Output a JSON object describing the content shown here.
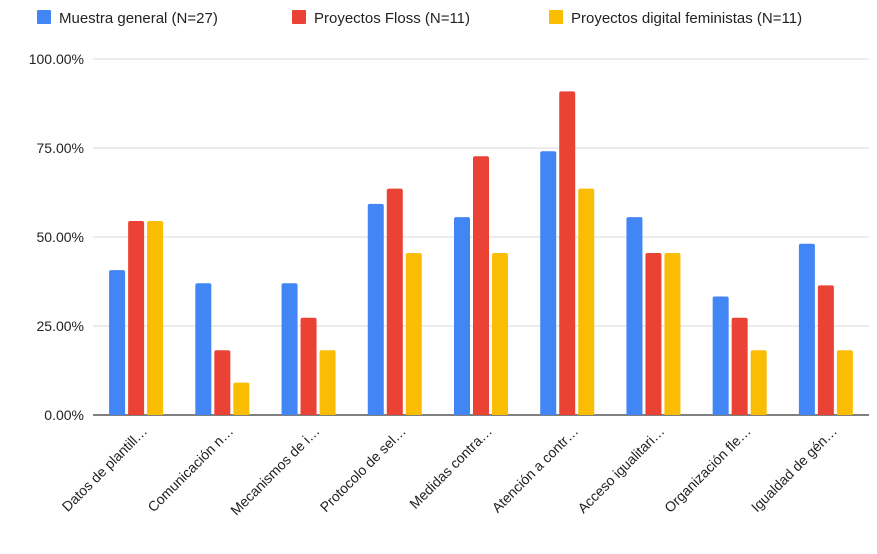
{
  "chart_data": {
    "type": "bar",
    "title": "",
    "xlabel": "",
    "ylabel": "",
    "ylim": [
      0,
      1
    ],
    "yticks": [
      {
        "value": 0,
        "label": "0.00%"
      },
      {
        "value": 0.25,
        "label": "25.00%"
      },
      {
        "value": 0.5,
        "label": "50.00%"
      },
      {
        "value": 0.75,
        "label": "75.00%"
      },
      {
        "value": 1,
        "label": "100.00%"
      }
    ],
    "grid": true,
    "legend_position": "top",
    "categories": [
      "Datos de plantill…",
      "Comunicación n…",
      "Mecanismos de i…",
      "Protocolo de sel…",
      "Medidas contra…",
      "Atención a contr…",
      "Acceso igualitari…",
      "Organización fle…",
      "Igualdad de gén…"
    ],
    "series": [
      {
        "name": "Muestra general (N=27)",
        "color": "#4285f4",
        "values": [
          0.407,
          0.37,
          0.37,
          0.593,
          0.556,
          0.741,
          0.556,
          0.333,
          0.481
        ]
      },
      {
        "name": "Proyectos Floss (N=11)",
        "color": "#ea4335",
        "values": [
          0.545,
          0.182,
          0.273,
          0.636,
          0.727,
          0.909,
          0.455,
          0.273,
          0.364
        ]
      },
      {
        "name": "Proyectos digital feministas (N=11)",
        "color": "#fbbc04",
        "values": [
          0.545,
          0.091,
          0.182,
          0.455,
          0.455,
          0.636,
          0.455,
          0.182,
          0.182
        ]
      }
    ]
  }
}
